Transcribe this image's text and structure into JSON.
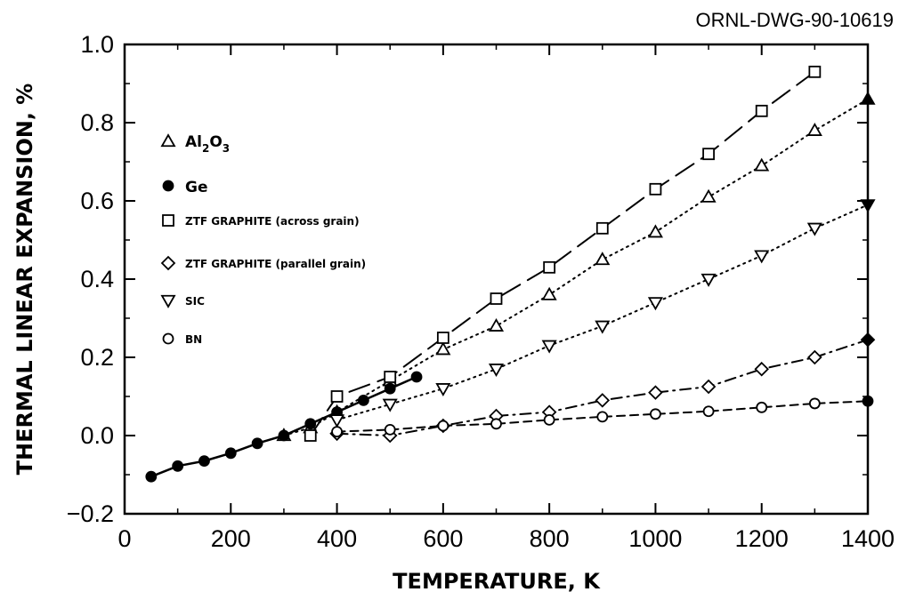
{
  "drawing_id": "ORNL-DWG-90-10619",
  "chart_data": {
    "type": "line",
    "title": "",
    "xlabel": "TEMPERATURE, K",
    "ylabel": "THERMAL LINEAR EXPANSION, %",
    "xlim": [
      0,
      1400
    ],
    "ylim": [
      -0.2,
      1.0
    ],
    "xticks": [
      0,
      200,
      400,
      600,
      800,
      1000,
      1200,
      1400
    ],
    "xtick_labels": [
      "0",
      "200",
      "400",
      "600",
      "800",
      "1000",
      "1200",
      "1400"
    ],
    "yticks": [
      -0.2,
      0.0,
      0.2,
      0.4,
      0.6,
      0.8,
      1.0
    ],
    "ytick_labels": [
      "−0.2",
      "0.0",
      "0.2",
      "0.4",
      "0.6",
      "0.8",
      "1.0"
    ],
    "grid": false,
    "legend_position": "top-left",
    "series": [
      {
        "key": "al2o3",
        "name": "Al2O3",
        "name_base": "Al",
        "name_sub1": "2",
        "name_mid": "O",
        "name_sub2": "3",
        "marker": "triangle-up",
        "line": "dotted",
        "x": [
          300,
          350,
          400,
          500,
          600,
          700,
          800,
          900,
          1000,
          1100,
          1200,
          1300,
          1400
        ],
        "y": [
          0.0,
          0.02,
          0.06,
          0.14,
          0.22,
          0.28,
          0.36,
          0.45,
          0.52,
          0.61,
          0.69,
          0.78,
          0.86
        ],
        "filled_last": true
      },
      {
        "key": "ge",
        "name": "Ge",
        "marker": "circle-filled",
        "line": "solid",
        "x": [
          50,
          100,
          150,
          200,
          250,
          300,
          350,
          400,
          450,
          500,
          550
        ],
        "y": [
          -0.105,
          -0.078,
          -0.065,
          -0.045,
          -0.02,
          0.0,
          0.03,
          0.06,
          0.09,
          0.12,
          0.15
        ]
      },
      {
        "key": "ztf_across",
        "name": "ZTF GRAPHITE (across grain)",
        "marker": "square",
        "line": "long-dash",
        "x": [
          350,
          400,
          500,
          600,
          700,
          800,
          900,
          1000,
          1100,
          1200,
          1300
        ],
        "y": [
          0.0,
          0.1,
          0.15,
          0.25,
          0.35,
          0.43,
          0.53,
          0.63,
          0.72,
          0.83,
          0.93
        ]
      },
      {
        "key": "ztf_parallel",
        "name": "ZTF GRAPHITE (parallel grain)",
        "marker": "diamond",
        "line": "dash-dot",
        "x": [
          400,
          500,
          600,
          700,
          800,
          900,
          1000,
          1100,
          1200,
          1300,
          1400
        ],
        "y": [
          0.005,
          0.0,
          0.025,
          0.05,
          0.06,
          0.09,
          0.11,
          0.125,
          0.17,
          0.2,
          0.245
        ],
        "filled_last": true
      },
      {
        "key": "sic",
        "name": "SIC",
        "marker": "triangle-down",
        "line": "dotted",
        "x": [
          400,
          500,
          600,
          700,
          800,
          900,
          1000,
          1100,
          1200,
          1300,
          1400
        ],
        "y": [
          0.04,
          0.08,
          0.12,
          0.17,
          0.23,
          0.28,
          0.34,
          0.4,
          0.46,
          0.53,
          0.59
        ],
        "filled_last": true
      },
      {
        "key": "bn",
        "name": "BN",
        "marker": "circle-open",
        "line": "short-dash",
        "x": [
          400,
          500,
          600,
          700,
          800,
          900,
          1000,
          1100,
          1200,
          1300,
          1400
        ],
        "y": [
          0.01,
          0.015,
          0.025,
          0.03,
          0.04,
          0.048,
          0.055,
          0.062,
          0.072,
          0.082,
          0.088
        ],
        "filled_last": true
      }
    ],
    "legend_labels": {
      "ge": "Ge",
      "ztf_across": "ZTF GRAPHITE (across grain)",
      "ztf_parallel": "ZTF GRAPHITE (parallel grain)",
      "sic": "SIC",
      "bn": "BN"
    }
  }
}
